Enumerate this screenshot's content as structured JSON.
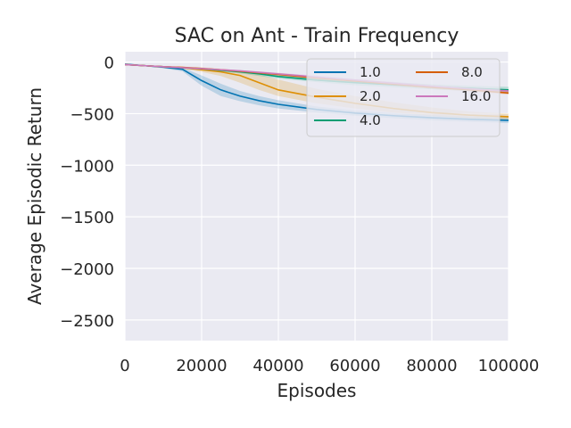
{
  "chart_data": {
    "type": "line",
    "title": "SAC on Ant - Train Frequency",
    "xlabel": "Episodes",
    "ylabel": "Average Episodic Return",
    "xlim": [
      0,
      100000
    ],
    "ylim": [
      -2700,
      100
    ],
    "x_ticks": [
      0,
      20000,
      40000,
      60000,
      80000,
      100000
    ],
    "x_tick_labels": [
      "0",
      "20000",
      "40000",
      "60000",
      "80000",
      "100000"
    ],
    "y_ticks": [
      0,
      -500,
      -1000,
      -1500,
      -2000,
      -2500
    ],
    "y_tick_labels": [
      "0",
      "−500",
      "−1000",
      "−1500",
      "−2000",
      "−2500"
    ],
    "grid": true,
    "legend_position": "top-right",
    "legend_columns": 2,
    "x": [
      0,
      5000,
      10000,
      15000,
      20000,
      25000,
      30000,
      35000,
      40000,
      50000,
      60000,
      70000,
      80000,
      90000,
      100000
    ],
    "series": [
      {
        "name": "1.0",
        "color": "#0173b2",
        "values": [
          -20,
          -35,
          -50,
          -70,
          -180,
          -270,
          -330,
          -375,
          -410,
          -460,
          -495,
          -520,
          -540,
          -555,
          -565
        ],
        "lower": [
          -25,
          -40,
          -60,
          -90,
          -230,
          -330,
          -380,
          -420,
          -450,
          -490,
          -520,
          -545,
          -565,
          -580,
          -590
        ],
        "upper": [
          -15,
          -30,
          -42,
          -55,
          -130,
          -210,
          -280,
          -330,
          -370,
          -430,
          -470,
          -495,
          -515,
          -530,
          -540
        ]
      },
      {
        "name": "2.0",
        "color": "#de8f05",
        "values": [
          -25,
          -35,
          -45,
          -55,
          -75,
          -95,
          -130,
          -200,
          -270,
          -340,
          -400,
          -450,
          -490,
          -515,
          -530
        ],
        "lower": [
          -30,
          -40,
          -52,
          -65,
          -95,
          -135,
          -200,
          -270,
          -330,
          -400,
          -450,
          -490,
          -520,
          -545,
          -560
        ],
        "upper": [
          -20,
          -30,
          -38,
          -45,
          -60,
          -70,
          -90,
          -120,
          -170,
          -260,
          -330,
          -390,
          -440,
          -480,
          -500
        ]
      },
      {
        "name": "4.0",
        "color": "#029e73",
        "values": [
          -25,
          -35,
          -45,
          -55,
          -65,
          -80,
          -95,
          -115,
          -140,
          -175,
          -200,
          -220,
          -240,
          -255,
          -270
        ],
        "lower": [
          -30,
          -40,
          -52,
          -62,
          -75,
          -92,
          -110,
          -135,
          -160,
          -195,
          -225,
          -245,
          -265,
          -280,
          -300
        ],
        "upper": [
          -20,
          -30,
          -38,
          -48,
          -55,
          -68,
          -80,
          -95,
          -115,
          -150,
          -175,
          -195,
          -215,
          -230,
          -240
        ]
      },
      {
        "name": "8.0",
        "color": "#d55e00",
        "values": [
          -25,
          -35,
          -45,
          -52,
          -62,
          -75,
          -90,
          -105,
          -120,
          -155,
          -185,
          -215,
          -245,
          -270,
          -300
        ],
        "lower": [
          -30,
          -40,
          -50,
          -60,
          -72,
          -85,
          -100,
          -118,
          -135,
          -170,
          -200,
          -230,
          -260,
          -285,
          -315
        ],
        "upper": [
          -20,
          -30,
          -40,
          -45,
          -52,
          -65,
          -80,
          -92,
          -105,
          -140,
          -170,
          -200,
          -230,
          -255,
          -285
        ]
      },
      {
        "name": "16.0",
        "color": "#cc78bc",
        "values": [
          -25,
          -35,
          -45,
          -55,
          -65,
          -75,
          -85,
          -100,
          -115,
          -145,
          -175,
          -205,
          -235,
          -260,
          -280
        ],
        "lower": [
          -30,
          -40,
          -50,
          -62,
          -72,
          -82,
          -95,
          -110,
          -125,
          -158,
          -188,
          -218,
          -248,
          -272,
          -292
        ],
        "upper": [
          -20,
          -30,
          -40,
          -48,
          -58,
          -68,
          -78,
          -90,
          -105,
          -132,
          -162,
          -192,
          -222,
          -248,
          -268
        ]
      }
    ]
  }
}
